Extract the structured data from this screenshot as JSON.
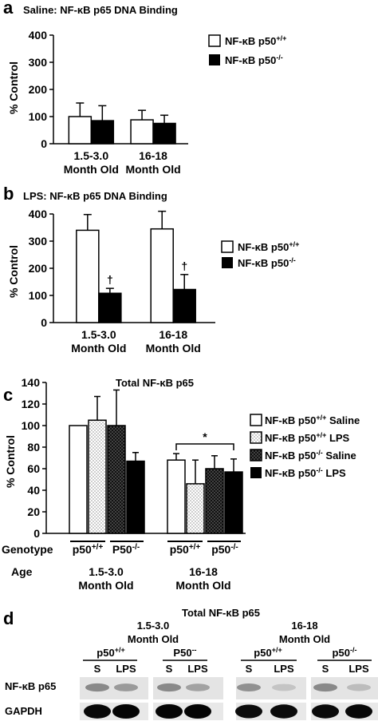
{
  "panels": [
    {
      "letter": "a",
      "title": "Saline: NF-κB p65 DNA Binding",
      "ylabel": "% Control",
      "legend": [
        "NF-κB p50+/+",
        "NF-κB p50-/-"
      ],
      "categories": [
        "1.5-3.0|Month Old",
        "16-18|Month Old"
      ]
    },
    {
      "letter": "b",
      "title": "LPS: NF-κB p65 DNA Binding",
      "ylabel": "% Control",
      "legend": [
        "NF-κB p50+/+",
        "NF-κB p50-/-"
      ],
      "categories": [
        "1.5-3.0|Month Old",
        "16-18|Month Old"
      ],
      "marker": "†"
    },
    {
      "letter": "c",
      "title": "Total NF-κB p65",
      "ylabel": "% Control",
      "legend": [
        "NF-κB p50+/+ Saline",
        "NF-κB p50+/+ LPS",
        "NF-κB p50-/- Saline",
        "NF-κB p50-/- LPS"
      ],
      "genotype_label": "Genotype",
      "age_label": "Age",
      "genotypes": [
        "p50+/+",
        "P50-/-",
        "p50+/+",
        "p50-/-"
      ],
      "ages": [
        "1.5-3.0|Month Old",
        "16-18|Month Old"
      ],
      "sig_marker": "*"
    }
  ],
  "chart_data": [
    {
      "type": "bar",
      "title": "Saline: NF-κB p65 DNA Binding",
      "ylabel": "% Control",
      "categories": [
        "1.5-3.0 Month Old",
        "16-18 Month Old"
      ],
      "ylim": [
        0,
        400
      ],
      "yticks": [
        0,
        100,
        200,
        300,
        400
      ],
      "series": [
        {
          "name": "NF-κB p50+/+",
          "values": [
            100,
            88
          ],
          "errors": [
            50,
            35
          ],
          "fill": "#ffffff"
        },
        {
          "name": "NF-κB p50-/-",
          "values": [
            85,
            75
          ],
          "errors": [
            55,
            30
          ],
          "fill": "#000000"
        }
      ]
    },
    {
      "type": "bar",
      "title": "LPS: NF-κB p65 DNA Binding",
      "ylabel": "% Control",
      "categories": [
        "1.5-3.0 Month Old",
        "16-18 Month Old"
      ],
      "ylim": [
        0,
        400
      ],
      "yticks": [
        0,
        100,
        200,
        300,
        400
      ],
      "series": [
        {
          "name": "NF-κB p50+/+",
          "values": [
            340,
            345
          ],
          "errors": [
            58,
            65
          ],
          "fill": "#ffffff"
        },
        {
          "name": "NF-κB p50-/-",
          "values": [
            108,
            122
          ],
          "errors": [
            18,
            55
          ],
          "fill": "#000000"
        }
      ],
      "annotations": [
        "†",
        "†"
      ]
    },
    {
      "type": "bar",
      "title": "Total NF-κB p65",
      "ylabel": "% Control",
      "categories": [
        "1.5-3.0 Month Old",
        "16-18 Month Old"
      ],
      "ylim": [
        0,
        140
      ],
      "yticks": [
        0,
        20,
        40,
        60,
        80,
        100,
        120,
        140
      ],
      "series": [
        {
          "name": "NF-κB p50+/+ Saline",
          "values": [
            100,
            68
          ],
          "errors": [
            0,
            6
          ],
          "fill": "#ffffff"
        },
        {
          "name": "NF-κB p50+/+ LPS",
          "values": [
            105,
            46
          ],
          "errors": [
            22,
            22
          ],
          "fill": "dots"
        },
        {
          "name": "NF-κB p50-/- Saline",
          "values": [
            100,
            60
          ],
          "errors": [
            33,
            12
          ],
          "fill": "darkdots"
        },
        {
          "name": "NF-κB p50-/- LPS",
          "values": [
            67,
            57
          ],
          "errors": [
            8,
            12
          ],
          "fill": "#000000"
        }
      ],
      "annotations": [
        "*"
      ]
    }
  ],
  "blot": {
    "letter": "d",
    "title": "Total NF-κB p65",
    "ages": [
      "1.5-3.0|Month Old",
      "16-18|Month Old"
    ],
    "genotypes": [
      "p50+/+",
      "P50--",
      "p50+/+",
      "p50-/-"
    ],
    "lanes": [
      "S",
      "LPS",
      "S",
      "LPS",
      "S",
      "LPS",
      "S",
      "LPS"
    ],
    "rows": [
      "NF-κB p65",
      "GAPDH"
    ],
    "p65_intensity": [
      0.55,
      0.45,
      0.55,
      0.4,
      0.5,
      0.2,
      0.55,
      0.25
    ],
    "gapdh_intensity": [
      0.95,
      1.0,
      1.0,
      1.0,
      0.85,
      0.9,
      0.9,
      0.95
    ]
  }
}
